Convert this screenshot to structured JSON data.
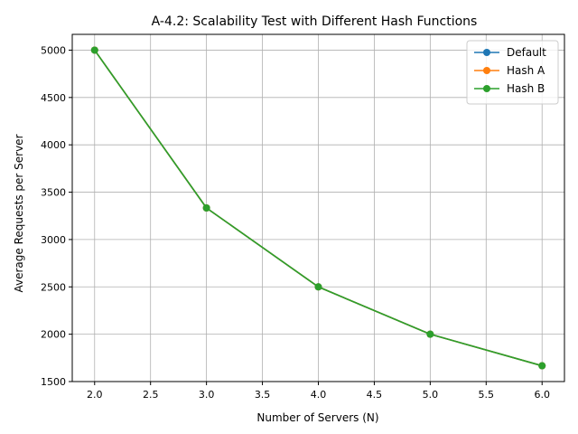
{
  "chart_data": {
    "type": "line",
    "title": "A-4.2: Scalability Test with Different Hash Functions",
    "xlabel": "Number of Servers (N)",
    "ylabel": "Average Requests per Server",
    "x": [
      2,
      3,
      4,
      5,
      6
    ],
    "xlim": [
      1.8,
      6.2
    ],
    "ylim": [
      1500,
      5166.67
    ],
    "xticks": [
      2.0,
      2.5,
      3.0,
      3.5,
      4.0,
      4.5,
      5.0,
      5.5,
      6.0
    ],
    "yticks": [
      1500,
      2000,
      2500,
      3000,
      3500,
      4000,
      4500,
      5000
    ],
    "grid": true,
    "legend_position": "top-right",
    "series": [
      {
        "name": "Default",
        "color": "#1f77b4",
        "marker": "circle",
        "values": [
          5000,
          3333.33,
          2500,
          2000,
          1666.67
        ]
      },
      {
        "name": "Hash A",
        "color": "#ff7f0e",
        "marker": "circle",
        "values": [
          5000,
          3333.33,
          2500,
          2000,
          1666.67
        ]
      },
      {
        "name": "Hash B",
        "color": "#2ca02c",
        "marker": "circle",
        "values": [
          5000,
          3333.33,
          2500,
          2000,
          1666.67
        ]
      }
    ]
  }
}
